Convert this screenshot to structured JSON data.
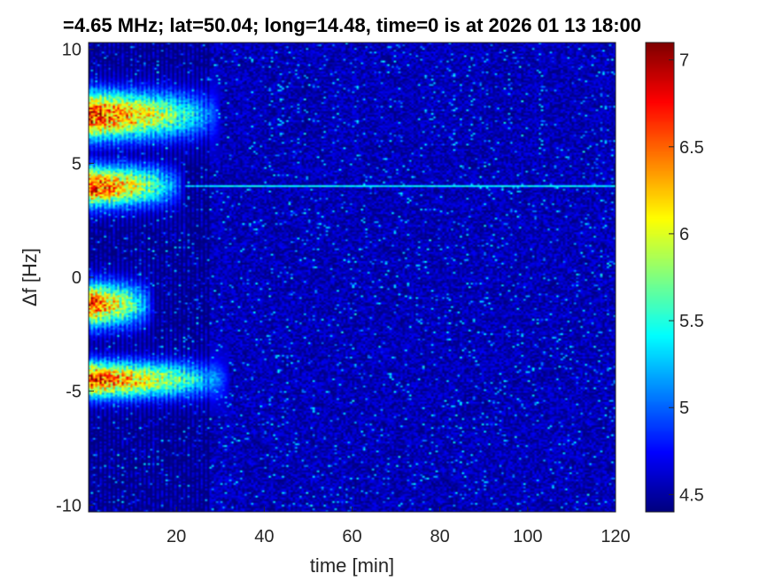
{
  "chart_data": {
    "type": "heatmap",
    "title": "=4.65 MHz;  lat=50.04; long=14.48, time=0 is at 2026 01 13 18:00",
    "xlabel": "time [min]",
    "ylabel": "Δf [Hz]",
    "xlim": [
      0,
      120
    ],
    "ylim": [
      -10.3,
      10.3
    ],
    "x_ticks": [
      20,
      40,
      60,
      80,
      100,
      120
    ],
    "x_tick_labels": [
      "20",
      "40",
      "60",
      "80",
      "100",
      "120"
    ],
    "y_ticks": [
      -10,
      -5,
      0,
      5,
      10
    ],
    "y_tick_labels": [
      "-10",
      "-5",
      "0",
      "5",
      "10"
    ],
    "colorbar": {
      "range": [
        4.4,
        7.1
      ],
      "ticks": [
        4.5,
        5,
        5.5,
        6,
        6.5,
        7
      ],
      "tick_labels": [
        "4.5",
        "5",
        "5.5",
        "6",
        "6.5",
        "7"
      ],
      "colormap": "jet"
    },
    "background_level": 4.55,
    "features": [
      {
        "kind": "blob",
        "t_start": 0,
        "t_end": 30,
        "df_center": 7.1,
        "df_width": 1.3,
        "peak": 7.0
      },
      {
        "kind": "blob",
        "t_start": 0,
        "t_end": 22,
        "df_center": 4.0,
        "df_width": 1.1,
        "peak": 7.0
      },
      {
        "kind": "blob",
        "t_start": 0,
        "t_end": 15,
        "df_center": -1.2,
        "df_width": 1.2,
        "peak": 6.9
      },
      {
        "kind": "blob",
        "t_start": 0,
        "t_end": 32,
        "df_center": -4.5,
        "df_width": 1.0,
        "peak": 6.9
      },
      {
        "kind": "carrier",
        "t_start": 22,
        "t_end": 120,
        "df": 4.0,
        "level": 5.4
      }
    ]
  }
}
